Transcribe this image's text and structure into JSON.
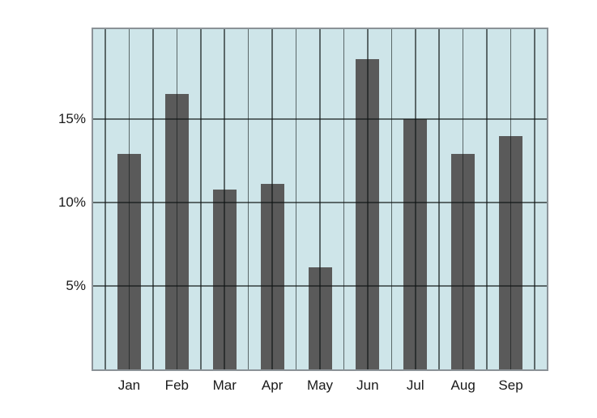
{
  "chart_data": {
    "type": "bar",
    "title": "",
    "xlabel": "",
    "ylabel": "",
    "unit": "%",
    "categories": [
      "Jan",
      "Feb",
      "Mar",
      "Apr",
      "May",
      "Jun",
      "Jul",
      "Aug",
      "Sep"
    ],
    "values": [
      12.9,
      16.5,
      10.8,
      11.1,
      6.1,
      18.6,
      15.0,
      12.9,
      14.0
    ],
    "y_ticks": [
      {
        "value": 5,
        "label": "5%"
      },
      {
        "value": 10,
        "label": "10%"
      },
      {
        "value": 15,
        "label": "15%"
      }
    ],
    "ylim": [
      0,
      20.4
    ],
    "grid": {
      "vertical_line_count": 19,
      "horizontal_lines_on_ticks": true
    },
    "legend": "none",
    "colors": {
      "plot_background": "#cee5e9",
      "bar": "#5a5a5a",
      "gridline": "rgba(15,20,20,0.6)",
      "plot_border": "#8b9297",
      "label_text": "#1a1a1a",
      "page_background": "#ffffff"
    }
  }
}
